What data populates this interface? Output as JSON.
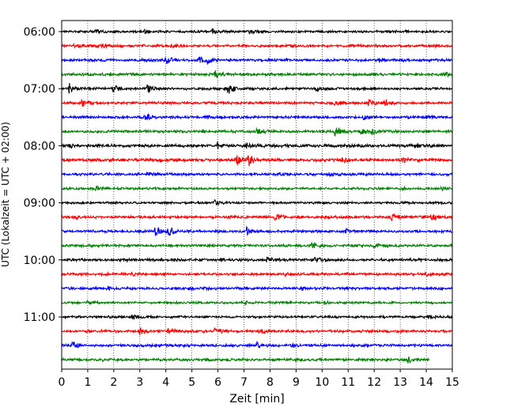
{
  "chart_data": {
    "type": "line",
    "title": "",
    "xlabel": "Zeit  [min]",
    "ylabel": "UTC (Lokalzeit = UTC + 02:00)",
    "xlim": [
      0,
      15
    ],
    "x_ticks": [
      "0",
      "1",
      "2",
      "3",
      "4",
      "5",
      "6",
      "7",
      "8",
      "9",
      "10",
      "11",
      "12",
      "13",
      "14",
      "15"
    ],
    "y_ticks": [
      {
        "label": "06:00",
        "row": 0
      },
      {
        "label": "07:00",
        "row": 4
      },
      {
        "label": "08:00",
        "row": 8
      },
      {
        "label": "09:00",
        "row": 12
      },
      {
        "label": "10:00",
        "row": 16
      },
      {
        "label": "11:00",
        "row": 20
      }
    ],
    "grid": "vertical-dotted",
    "row_minutes": 15,
    "row_count": 24,
    "trace_colors": [
      "#000000",
      "#ff0000",
      "#0000ff",
      "#008000"
    ],
    "last_row_end_min": 14.1,
    "rows": [
      {
        "noise": 0.25,
        "events": [
          [
            1.3,
            0.6
          ],
          [
            3.2,
            0.5
          ],
          [
            5.8,
            1.0
          ],
          [
            7.2,
            0.7
          ],
          [
            12.5,
            0.4
          ]
        ]
      },
      {
        "noise": 0.3,
        "events": [
          [
            0.5,
            0.5
          ],
          [
            1.5,
            0.4
          ],
          [
            4.2,
            0.4
          ],
          [
            8.8,
            0.5
          ],
          [
            12.0,
            0.4
          ]
        ]
      },
      {
        "noise": 0.3,
        "events": [
          [
            4.0,
            1.4
          ],
          [
            5.3,
            1.0
          ],
          [
            5.6,
            0.8
          ],
          [
            12.2,
            0.4
          ]
        ]
      },
      {
        "noise": 0.3,
        "events": [
          [
            5.9,
            0.9
          ],
          [
            9.0,
            0.3
          ],
          [
            14.7,
            0.6
          ]
        ]
      },
      {
        "noise": 0.3,
        "events": [
          [
            0.3,
            1.5
          ],
          [
            2.0,
            1.2
          ],
          [
            3.3,
            1.0
          ],
          [
            6.4,
            1.4
          ],
          [
            9.8,
            0.4
          ]
        ]
      },
      {
        "noise": 0.3,
        "events": [
          [
            0.8,
            1.0
          ],
          [
            10.5,
            0.8
          ],
          [
            11.8,
            0.9
          ],
          [
            12.4,
            0.9
          ]
        ]
      },
      {
        "noise": 0.3,
        "events": [
          [
            3.2,
            1.2
          ],
          [
            5.5,
            0.5
          ],
          [
            11.6,
            0.6
          ],
          [
            14.0,
            0.5
          ]
        ]
      },
      {
        "noise": 0.3,
        "events": [
          [
            7.5,
            0.6
          ],
          [
            10.5,
            1.3
          ],
          [
            11.5,
            0.8
          ],
          [
            11.9,
            0.7
          ]
        ]
      },
      {
        "noise": 0.35,
        "events": [
          [
            0.3,
            0.5
          ],
          [
            6.0,
            0.7
          ],
          [
            7.1,
            0.9
          ],
          [
            13.6,
            0.6
          ]
        ]
      },
      {
        "noise": 0.35,
        "events": [
          [
            6.7,
            2.2
          ],
          [
            7.2,
            1.6
          ],
          [
            10.8,
            0.8
          ],
          [
            13.1,
            0.5
          ]
        ]
      },
      {
        "noise": 0.3,
        "events": [
          [
            3.3,
            0.5
          ],
          [
            8.1,
            0.4
          ],
          [
            10.2,
            0.5
          ]
        ]
      },
      {
        "noise": 0.25,
        "events": [
          [
            1.3,
            0.6
          ],
          [
            13.0,
            0.4
          ],
          [
            14.6,
            0.7
          ]
        ]
      },
      {
        "noise": 0.25,
        "events": [
          [
            5.9,
            0.7
          ],
          [
            7.2,
            0.3
          ]
        ]
      },
      {
        "noise": 0.3,
        "events": [
          [
            0.6,
            0.4
          ],
          [
            8.2,
            0.8
          ],
          [
            12.7,
            1.2
          ],
          [
            14.2,
            1.0
          ]
        ]
      },
      {
        "noise": 0.3,
        "events": [
          [
            3.6,
            1.4
          ],
          [
            4.1,
            1.4
          ],
          [
            7.1,
            1.1
          ],
          [
            10.9,
            0.5
          ]
        ]
      },
      {
        "noise": 0.3,
        "events": [
          [
            9.6,
            1.5
          ],
          [
            12.0,
            0.4
          ]
        ]
      },
      {
        "noise": 0.3,
        "events": [
          [
            2.4,
            0.6
          ],
          [
            6.1,
            0.4
          ],
          [
            7.9,
            0.8
          ],
          [
            9.7,
            0.6
          ]
        ]
      },
      {
        "noise": 0.3,
        "events": [
          [
            2.7,
            0.5
          ],
          [
            8.6,
            0.4
          ],
          [
            14.0,
            0.6
          ]
        ]
      },
      {
        "noise": 0.3,
        "events": [
          [
            1.8,
            0.5
          ],
          [
            5.5,
            0.4
          ],
          [
            9.2,
            0.4
          ]
        ]
      },
      {
        "noise": 0.25,
        "events": [
          [
            1.0,
            0.5
          ],
          [
            7.0,
            0.4
          ],
          [
            10.1,
            0.4
          ]
        ]
      },
      {
        "noise": 0.25,
        "events": [
          [
            2.7,
            0.6
          ],
          [
            14.1,
            0.6
          ]
        ]
      },
      {
        "noise": 0.3,
        "events": [
          [
            3.0,
            0.9
          ],
          [
            4.1,
            1.0
          ],
          [
            5.9,
            1.2
          ],
          [
            7.6,
            0.5
          ]
        ]
      },
      {
        "noise": 0.3,
        "events": [
          [
            0.4,
            1.0
          ],
          [
            3.8,
            0.5
          ],
          [
            7.5,
            0.8
          ],
          [
            8.8,
            0.5
          ]
        ]
      },
      {
        "noise": 0.3,
        "events": [
          [
            1.6,
            0.5
          ],
          [
            13.3,
            0.8
          ]
        ]
      }
    ]
  }
}
